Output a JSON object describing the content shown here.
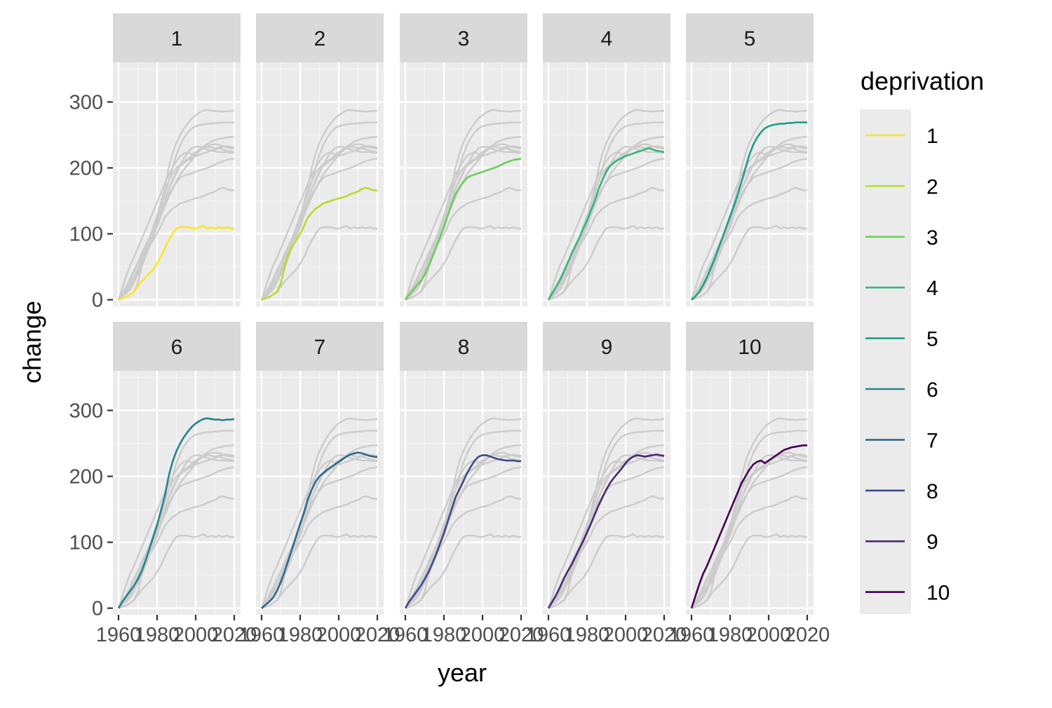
{
  "chart_data": {
    "type": "line",
    "facet_by": "deprivation",
    "facets": [
      "1",
      "2",
      "3",
      "4",
      "5",
      "6",
      "7",
      "8",
      "9",
      "10"
    ],
    "xlabel": "year",
    "ylabel": "change",
    "xlim": [
      1960,
      2020
    ],
    "ylim": [
      -10,
      360
    ],
    "x_ticks": [
      1960,
      1980,
      2000,
      2020
    ],
    "x_tick_labels": [
      "1960",
      "1980",
      "2000",
      "2020"
    ],
    "y_ticks": [
      0,
      100,
      200,
      300
    ],
    "y_tick_labels": [
      "0",
      "100",
      "200",
      "300"
    ],
    "background_series_color": "#CCCCCC",
    "panel_background": "#EBEBEB",
    "strip_background": "#D9D9D9",
    "legend": {
      "title": "deprivation",
      "position": "right",
      "entries": [
        "1",
        "2",
        "3",
        "4",
        "5",
        "6",
        "7",
        "8",
        "9",
        "10"
      ]
    },
    "x": [
      1960,
      1962,
      1964,
      1966,
      1968,
      1970,
      1972,
      1974,
      1976,
      1978,
      1980,
      1982,
      1984,
      1986,
      1988,
      1990,
      1992,
      1994,
      1996,
      1998,
      2000,
      2002,
      2004,
      2006,
      2008,
      2010,
      2012,
      2014,
      2016,
      2018,
      2020
    ],
    "series": [
      {
        "name": "1",
        "color": "#FDE725",
        "values": [
          0,
          2,
          4,
          8,
          12,
          20,
          28,
          34,
          40,
          46,
          55,
          65,
          78,
          90,
          100,
          108,
          110,
          110,
          110,
          108,
          108,
          110,
          112,
          108,
          110,
          108,
          110,
          108,
          110,
          108,
          108
        ]
      },
      {
        "name": "2",
        "color": "#B5DE2B",
        "values": [
          0,
          2,
          4,
          8,
          12,
          25,
          50,
          70,
          82,
          90,
          100,
          112,
          125,
          132,
          138,
          142,
          146,
          148,
          150,
          152,
          154,
          155,
          157,
          160,
          162,
          164,
          168,
          170,
          168,
          166,
          166
        ]
      },
      {
        "name": "3",
        "color": "#6CCE59",
        "values": [
          0,
          8,
          15,
          22,
          28,
          38,
          50,
          65,
          80,
          95,
          110,
          128,
          145,
          160,
          170,
          178,
          185,
          188,
          190,
          192,
          194,
          196,
          198,
          200,
          202,
          205,
          208,
          210,
          212,
          213,
          214
        ]
      },
      {
        "name": "4",
        "color": "#35B779",
        "values": [
          0,
          10,
          20,
          30,
          42,
          56,
          70,
          82,
          94,
          108,
          120,
          135,
          150,
          168,
          182,
          195,
          203,
          208,
          212,
          215,
          218,
          220,
          222,
          224,
          226,
          228,
          230,
          228,
          226,
          225,
          224
        ]
      },
      {
        "name": "5",
        "color": "#1F9E89",
        "values": [
          0,
          5,
          12,
          22,
          34,
          48,
          62,
          78,
          94,
          110,
          126,
          142,
          160,
          180,
          200,
          220,
          235,
          246,
          254,
          260,
          263,
          265,
          266,
          267,
          267,
          268,
          268,
          269,
          269,
          269,
          269
        ]
      },
      {
        "name": "6",
        "color": "#26828E",
        "values": [
          0,
          10,
          18,
          26,
          34,
          44,
          56,
          72,
          90,
          108,
          126,
          148,
          170,
          200,
          222,
          238,
          250,
          260,
          268,
          275,
          280,
          284,
          287,
          288,
          287,
          286,
          286,
          285,
          286,
          286,
          287
        ]
      },
      {
        "name": "7",
        "color": "#31688E",
        "values": [
          0,
          5,
          10,
          16,
          26,
          40,
          56,
          74,
          92,
          110,
          128,
          145,
          165,
          180,
          192,
          200,
          205,
          210,
          214,
          218,
          222,
          226,
          230,
          233,
          235,
          236,
          235,
          233,
          231,
          230,
          229
        ]
      },
      {
        "name": "8",
        "color": "#3E4A89",
        "values": [
          0,
          10,
          18,
          26,
          34,
          44,
          55,
          68,
          82,
          98,
          114,
          132,
          150,
          168,
          180,
          192,
          205,
          215,
          224,
          230,
          232,
          232,
          230,
          228,
          226,
          225,
          224,
          224,
          224,
          223,
          223
        ]
      },
      {
        "name": "9",
        "color": "#482878",
        "values": [
          0,
          10,
          20,
          32,
          45,
          56,
          66,
          78,
          90,
          102,
          115,
          128,
          142,
          156,
          168,
          180,
          190,
          198,
          205,
          212,
          220,
          226,
          230,
          232,
          231,
          230,
          231,
          232,
          233,
          232,
          231
        ]
      },
      {
        "name": "10",
        "color": "#440154",
        "values": [
          0,
          18,
          36,
          52,
          64,
          78,
          92,
          106,
          120,
          134,
          148,
          162,
          176,
          190,
          200,
          210,
          218,
          222,
          224,
          220,
          224,
          228,
          232,
          236,
          240,
          242,
          244,
          245,
          246,
          247,
          247
        ]
      }
    ]
  }
}
